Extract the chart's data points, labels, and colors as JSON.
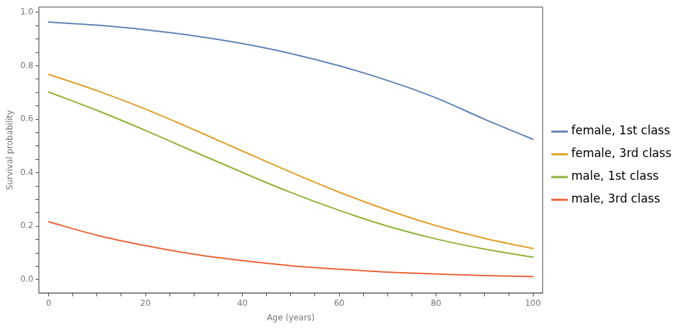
{
  "chart_data": {
    "type": "line",
    "xlabel": "Age (years)",
    "ylabel": "Survival probability",
    "x": [
      0,
      10,
      20,
      30,
      40,
      50,
      60,
      70,
      80,
      90,
      100
    ],
    "series": [
      {
        "name": "female, 1st class",
        "color": "#5e81b5",
        "values": [
          0.964,
          0.952,
          0.935,
          0.912,
          0.883,
          0.846,
          0.8,
          0.745,
          0.68,
          0.6,
          0.525
        ]
      },
      {
        "name": "female, 3rd class",
        "color": "#e19c24",
        "values": [
          0.768,
          0.707,
          0.638,
          0.561,
          0.481,
          0.402,
          0.327,
          0.26,
          0.202,
          0.154,
          0.116
        ]
      },
      {
        "name": "male, 1st class",
        "color": "#8fb032",
        "values": [
          0.702,
          0.633,
          0.558,
          0.479,
          0.401,
          0.326,
          0.259,
          0.2,
          0.152,
          0.114,
          0.084
        ]
      },
      {
        "name": "male, 3rd class",
        "color": "#eb6235",
        "values": [
          0.216,
          0.166,
          0.127,
          0.095,
          0.071,
          0.052,
          0.039,
          0.028,
          0.021,
          0.015,
          0.011
        ]
      }
    ],
    "xlim": [
      -2,
      102
    ],
    "xticks": [
      0,
      {
        "value": 5,
        "label": null
      },
      {
        "value": 10,
        "label": null
      },
      {
        "value": 15,
        "label": null
      },
      20,
      {
        "value": 25,
        "label": null
      },
      {
        "value": 30,
        "label": null
      },
      {
        "value": 35,
        "label": null
      },
      40,
      {
        "value": 45,
        "label": null
      },
      {
        "value": 50,
        "label": null
      },
      {
        "value": 55,
        "label": null
      },
      60,
      {
        "value": 65,
        "label": null
      },
      {
        "value": 70,
        "label": null
      },
      {
        "value": 75,
        "label": null
      },
      80,
      {
        "value": 85,
        "label": null
      },
      {
        "value": 90,
        "label": null
      },
      {
        "value": 95,
        "label": null
      },
      100
    ],
    "ylim": [
      -0.05,
      1.02
    ],
    "yticks": [
      {
        "value": 0,
        "label": "0.0"
      },
      {
        "value": 0.05,
        "label": null
      },
      {
        "value": 0.1,
        "label": null
      },
      {
        "value": 0.15,
        "label": null
      },
      {
        "value": 0.2,
        "label": "0.2"
      },
      {
        "value": 0.25,
        "label": null
      },
      {
        "value": 0.3,
        "label": null
      },
      {
        "value": 0.35,
        "label": null
      },
      {
        "value": 0.4,
        "label": "0.4"
      },
      {
        "value": 0.45,
        "label": null
      },
      {
        "value": 0.5,
        "label": null
      },
      {
        "value": 0.55,
        "label": null
      },
      {
        "value": 0.6,
        "label": "0.6"
      },
      {
        "value": 0.65,
        "label": null
      },
      {
        "value": 0.7,
        "label": null
      },
      {
        "value": 0.75,
        "label": null
      },
      {
        "value": 0.8,
        "label": "0.8"
      },
      {
        "value": 0.85,
        "label": null
      },
      {
        "value": 0.9,
        "label": null
      },
      {
        "value": 0.95,
        "label": null
      },
      {
        "value": 1,
        "label": "1.0"
      }
    ],
    "grid": false,
    "legend": "right",
    "marker": "none",
    "line_style": "solid"
  }
}
